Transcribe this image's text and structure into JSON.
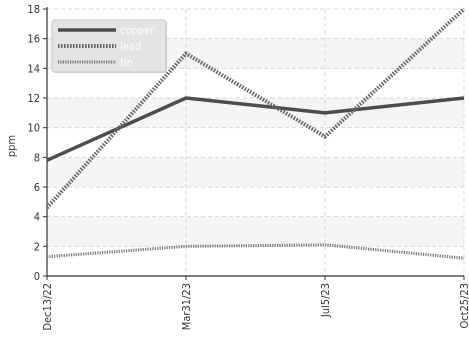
{
  "chart_data": {
    "type": "line",
    "ylabel": "ppm",
    "ylim": [
      0,
      18
    ],
    "yticks": [
      0,
      2,
      4,
      6,
      8,
      10,
      12,
      14,
      16,
      18
    ],
    "categories": [
      "Dec13/22",
      "Mar31/23",
      "Jul5/23",
      "Oct25/23"
    ],
    "grid": true,
    "legend": "top-left",
    "series": [
      {
        "name": "copper",
        "values": [
          7.8,
          12.0,
          11.0,
          12.0
        ],
        "color": "#4d4d4d",
        "style": "solid"
      },
      {
        "name": "lead",
        "values": [
          4.6,
          15.0,
          9.4,
          18.0
        ],
        "color": "#666666",
        "style": "dotted-thick"
      },
      {
        "name": "tin",
        "values": [
          1.3,
          2.0,
          2.1,
          1.2
        ],
        "color": "#777777",
        "style": "dotted-thin"
      }
    ]
  }
}
